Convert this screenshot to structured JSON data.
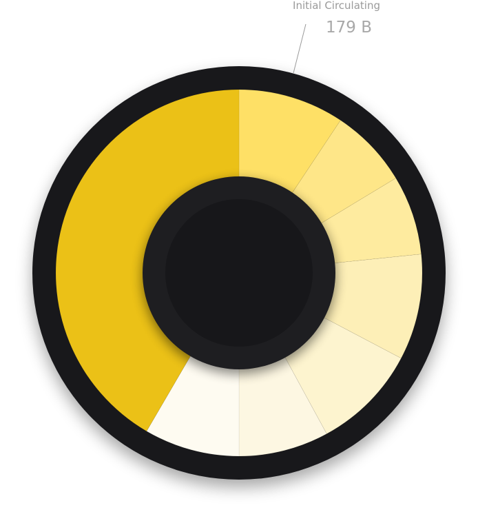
{
  "chart_data": {
    "type": "pie",
    "style": "donut",
    "slices": [
      {
        "value": 10.0,
        "color": "#fee066"
      },
      {
        "value": 7.5,
        "color": "#fee688"
      },
      {
        "value": 7.5,
        "color": "#feeb9f"
      },
      {
        "value": 10.0,
        "color": "#fdefb7"
      },
      {
        "value": 10.0,
        "color": "#fdf4cf"
      },
      {
        "value": 8.5,
        "color": "#fdf7e2"
      },
      {
        "value": 9.0,
        "color": "#fefbf1"
      },
      {
        "value": 44.5,
        "color": "#ebc117"
      }
    ],
    "annotations": [
      {
        "label": "Initial Circulating",
        "value": "179 B",
        "slice_index": 0
      }
    ]
  },
  "colors": {
    "ring": "#18181b",
    "hub": "#17171a",
    "hub_rim": "#1e1e21",
    "leader_line": "#9a9a9a"
  }
}
